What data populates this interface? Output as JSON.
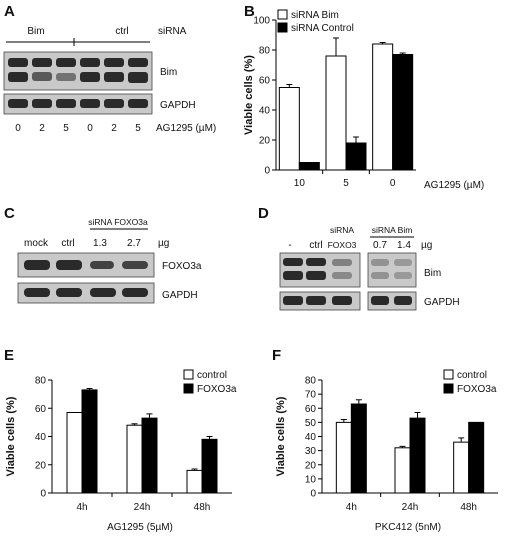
{
  "panels": {
    "A": {
      "letter": "A",
      "groups": [
        "Bim",
        "ctrl"
      ],
      "group_suffix": "siRNA",
      "blots": [
        "Bim",
        "GAPDH"
      ],
      "lanes": [
        "0",
        "2",
        "5",
        "0",
        "2",
        "5"
      ],
      "lane_title": "AG1295 (µM)"
    },
    "B": {
      "letter": "B"
    },
    "C": {
      "letter": "C",
      "header": "siRNA FOXO3a",
      "lanes": [
        "mock",
        "ctrl",
        "1.3",
        "2.7"
      ],
      "unit": "µg",
      "blots": [
        "FOXO3a",
        "GAPDH"
      ]
    },
    "D": {
      "letter": "D",
      "lanes_left": [
        "-",
        "ctrl"
      ],
      "header_sirna": "siRNA",
      "lane_foxo3": "FOXO3",
      "header_bim": "siRNA Bim",
      "lanes_bim": [
        "0.7",
        "1.4"
      ],
      "unit": "µg",
      "blots": [
        "Bim",
        "GAPDH"
      ]
    },
    "E": {
      "letter": "E"
    },
    "F": {
      "letter": "F"
    }
  },
  "chart_data": [
    {
      "id": "B",
      "type": "bar",
      "categories": [
        "10",
        "5",
        "0"
      ],
      "series": [
        {
          "name": "siRNA Bim",
          "values": [
            55,
            76,
            84
          ],
          "errors": [
            2,
            12,
            1
          ],
          "color": "#ffffff"
        },
        {
          "name": "siRNA Control",
          "values": [
            5,
            18,
            77
          ],
          "errors": [
            0,
            4,
            1
          ],
          "color": "#000000"
        }
      ],
      "xlabel": "AG1295 (µM)",
      "ylabel": "Viable cells (%)",
      "ylim": [
        0,
        100
      ],
      "yticks": [
        "0",
        "20",
        "40",
        "60",
        "80",
        "100"
      ],
      "legend": "top-left"
    },
    {
      "id": "E",
      "type": "bar",
      "categories": [
        "4h",
        "24h",
        "48h"
      ],
      "series": [
        {
          "name": "control",
          "values": [
            57,
            48,
            16
          ],
          "errors": [
            0,
            1,
            1
          ],
          "color": "#ffffff"
        },
        {
          "name": "FOXO3a",
          "values": [
            73,
            53,
            38
          ],
          "errors": [
            1,
            3,
            2
          ],
          "color": "#000000"
        }
      ],
      "xlabel": "AG1295 (5µM)",
      "ylabel": "Viable cells (%)",
      "ylim": [
        0,
        80
      ],
      "yticks": [
        "0",
        "20",
        "40",
        "60",
        "80"
      ],
      "legend": "top-right"
    },
    {
      "id": "F",
      "type": "bar",
      "categories": [
        "4h",
        "24h",
        "48h"
      ],
      "series": [
        {
          "name": "control",
          "values": [
            50,
            32,
            36
          ],
          "errors": [
            2,
            1,
            3
          ],
          "color": "#ffffff"
        },
        {
          "name": "FOXO3a",
          "values": [
            63,
            53,
            50
          ],
          "errors": [
            3,
            4,
            0
          ],
          "color": "#000000"
        }
      ],
      "xlabel": "PKC412 (5nM)",
      "ylabel": "Viable cells (%)",
      "ylim": [
        0,
        80
      ],
      "yticks": [
        "0",
        "10",
        "20",
        "30",
        "40",
        "50",
        "60",
        "70",
        "80"
      ],
      "legend": "top-right"
    }
  ]
}
